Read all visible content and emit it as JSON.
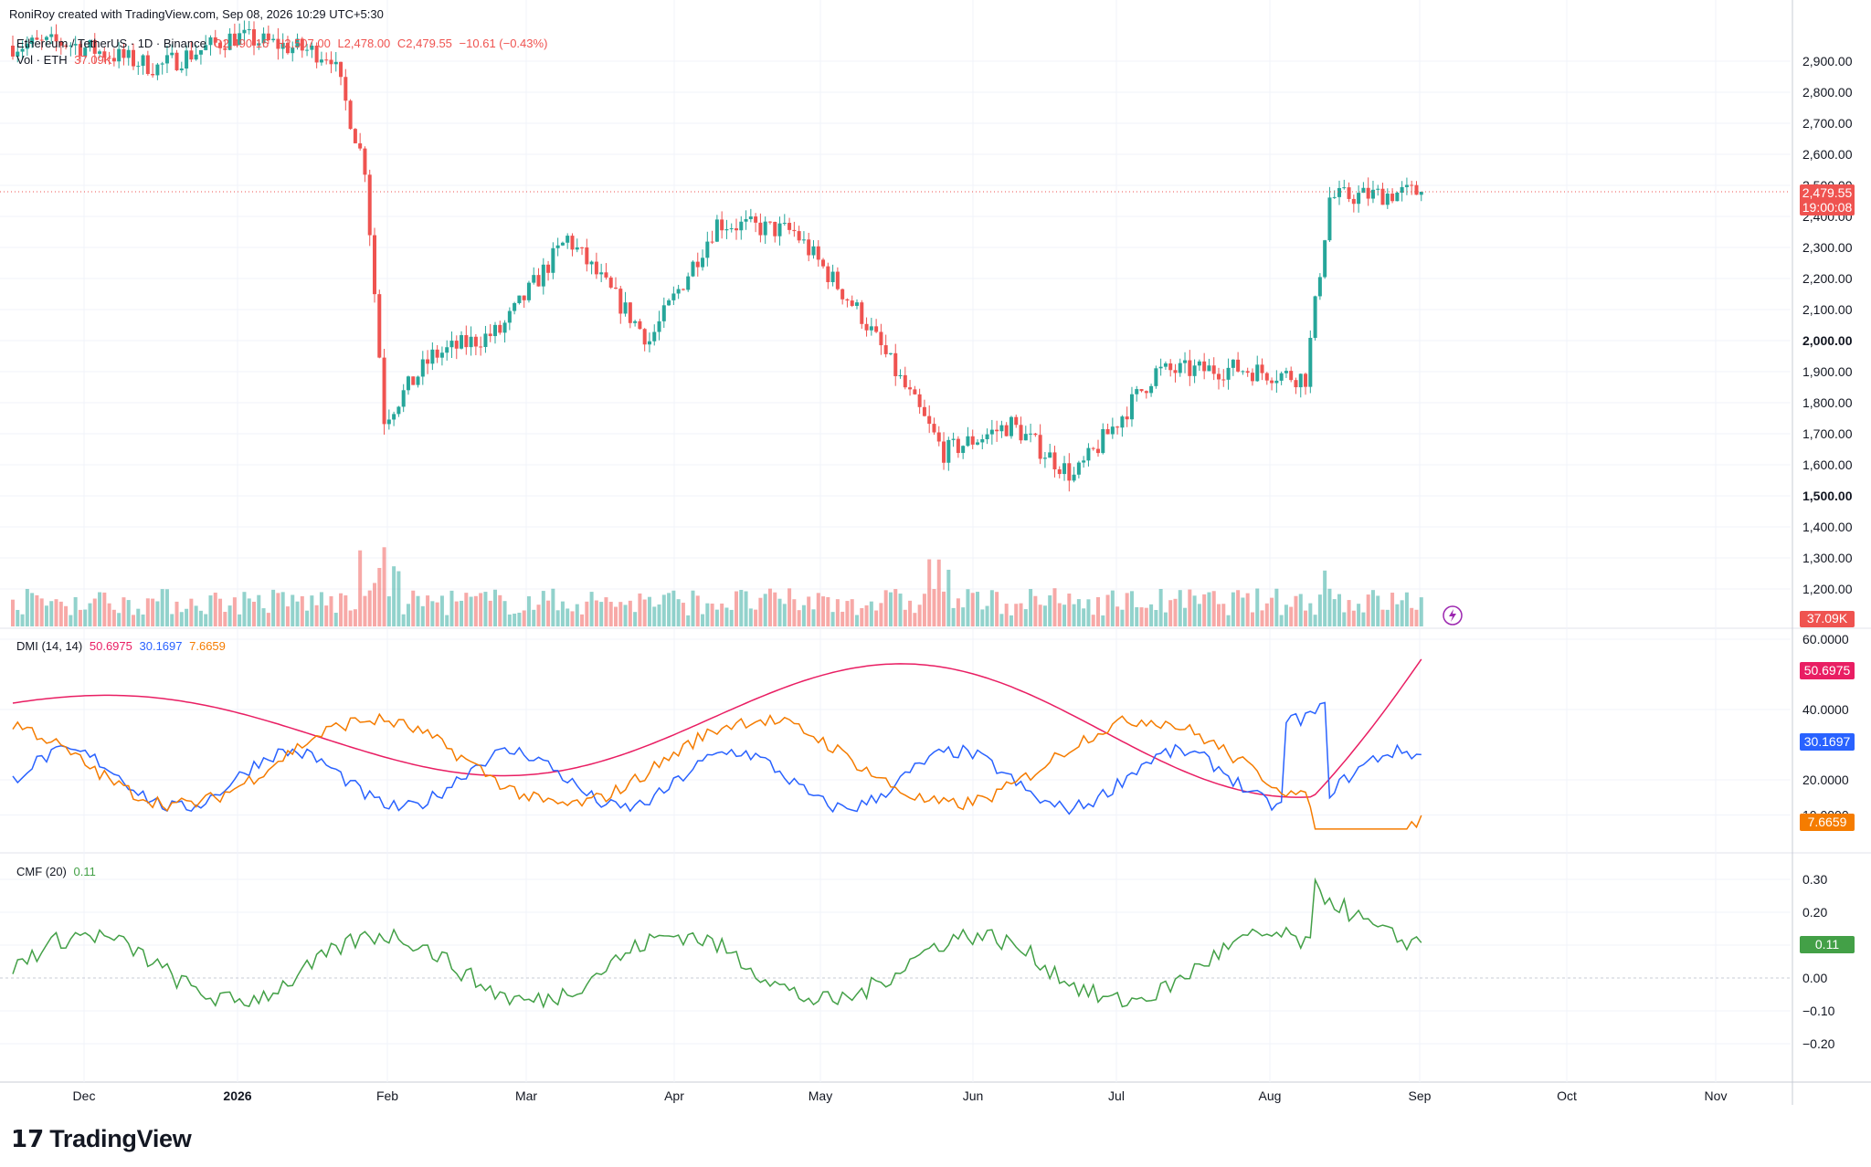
{
  "header": {
    "credit": "RoniRoy created with TradingView.com, Sep 08, 2026 10:29 UTC+5:30"
  },
  "symbol_legend": {
    "name": "Ethereum / TetherUS · 1D · Binance",
    "open": "O2,490.16",
    "high": "H2,507.00",
    "low": "L2,478.00",
    "close": "C2,479.55",
    "change": "−10.61 (−0.43%)",
    "volume_label": "Vol · ETH",
    "volume_value": "37.09K"
  },
  "price_axis": {
    "ticks": [
      "2,900.00",
      "2,800.00",
      "2,700.00",
      "2,600.00",
      "2,500.00",
      "2,400.00",
      "2,300.00",
      "2,200.00",
      "2,100.00",
      "2,000.00",
      "1,900.00",
      "1,800.00",
      "1,700.00",
      "1,600.00",
      "1,500.00",
      "1,400.00",
      "1,300.00",
      "1,200.00"
    ],
    "last_price": "2,479.55",
    "countdown": "19:00:08",
    "volume_badge": "37.09K"
  },
  "dmi_legend": {
    "name": "DMI (14, 14)",
    "adx": "50.6975",
    "plus_di": "30.1697",
    "minus_di": "7.6659"
  },
  "dmi_axis": {
    "ticks": [
      "60.0000",
      "40.0000",
      "20.0000",
      "10.0000"
    ]
  },
  "cmf_legend": {
    "name": "CMF (20)",
    "value": "0.11"
  },
  "cmf_axis": {
    "ticks": [
      "0.30",
      "0.20",
      "0.10",
      "0.00",
      "−0.10",
      "−0.20"
    ]
  },
  "time_axis": [
    "Dec",
    "2026",
    "Mar",
    "Apr",
    "May",
    "Jun",
    "Jul",
    "Aug",
    "Sep",
    "Oct",
    "Nov"
  ],
  "time_axis_feb": "Feb",
  "brand": {
    "logo": "17",
    "name": "TradingView"
  },
  "colors": {
    "up": "#26a69a",
    "down": "#ef5350",
    "adx": "#e91e63",
    "plus_di": "#2962ff",
    "minus_di": "#f57c00",
    "cmf": "#43a047"
  },
  "chart_data": {
    "type": "candlestick",
    "symbol": "ETH/USDT",
    "interval": "1D",
    "price_range": [
      1150,
      3000
    ],
    "ohlc_anchors": [
      {
        "date": "Nov 20",
        "close": 2950
      },
      {
        "date": "Dec 01",
        "close": 2960
      },
      {
        "date": "Dec 20",
        "close": 2880
      },
      {
        "date": "Jan 05",
        "close": 2980
      },
      {
        "date": "Jan 25",
        "close": 2920
      },
      {
        "date": "Feb 01",
        "close": 2560
      },
      {
        "date": "Feb 05",
        "close": 1750
      },
      {
        "date": "Feb 15",
        "close": 1950
      },
      {
        "date": "Mar 01",
        "close": 2030
      },
      {
        "date": "Mar 15",
        "close": 2330
      },
      {
        "date": "Apr 01",
        "close": 2000
      },
      {
        "date": "Apr 15",
        "close": 2380
      },
      {
        "date": "May 01",
        "close": 2350
      },
      {
        "date": "May 15",
        "close": 2080
      },
      {
        "date": "Jun 01",
        "close": 1640
      },
      {
        "date": "Jun 15",
        "close": 1730
      },
      {
        "date": "Jun 28",
        "close": 1560
      },
      {
        "date": "Jul 15",
        "close": 1900
      },
      {
        "date": "Aug 01",
        "close": 1910
      },
      {
        "date": "Aug 15",
        "close": 1880
      },
      {
        "date": "Aug 20",
        "close": 2460
      },
      {
        "date": "Sep 08",
        "close": 2479.55
      }
    ],
    "indicators": {
      "dmi": {
        "range": [
          0,
          60
        ],
        "adx_last": 50.6975,
        "plus_di_last": 30.1697,
        "minus_di_last": 7.6659
      },
      "cmf": {
        "range": [
          -0.28,
          0.34
        ],
        "last": 0.11
      }
    }
  }
}
